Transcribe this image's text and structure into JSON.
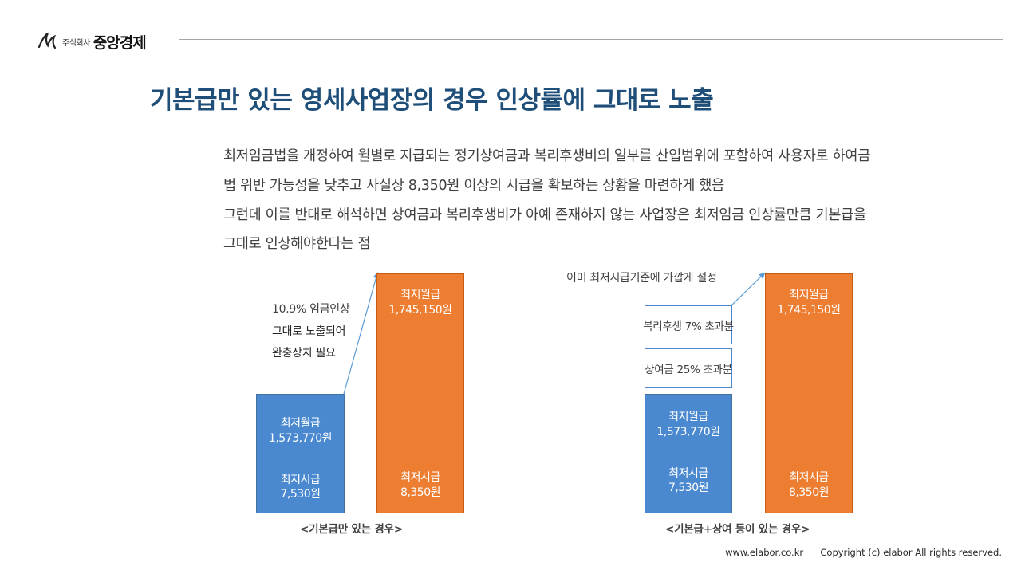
{
  "header": {
    "logo_small": "주식회사",
    "logo_name": "중앙경제"
  },
  "title": "기본급만 있는 영세사업장의 경우 인상률에 그대로 노출",
  "body": {
    "line1": "최저임금법을 개정하여 월별로 지급되는 정기상여금과 복리후생비의 일부를 산입범위에 포함하여 사용자로 하여금",
    "line2": "법 위반 가능성을 낮추고 사실상 8,350원 이상의 시급을 확보하는 상황을 마련하게 했음",
    "line3": "그런데 이를 반대로 해석하면 상여금과 복리후생비가 아예 존재하지 않는 사업장은 최저임금 인상률만큼 기본급을",
    "line4": "그대로 인상해야한다는 점"
  },
  "left_chart": {
    "note_line1": "10.9%  임금인상",
    "note_line2": "그대로 노출되어",
    "note_line3": "완충장치 필요",
    "blue_box": {
      "monthly_label": "최저월급",
      "monthly_value": "1,573,770원",
      "hourly_label": "최저시급",
      "hourly_value": "7,530원"
    },
    "orange_box": {
      "monthly_label": "최저월급",
      "monthly_value": "1,745,150원",
      "hourly_label": "최저시급",
      "hourly_value": "8,350원"
    },
    "caption": "<기본급만 있는 경우>"
  },
  "right_chart": {
    "note": "이미 최저시급기준에 가깝게 설정",
    "welfare_box": "복리후생 7% 초과분",
    "bonus_box": "상여금 25% 초과분",
    "blue_box": {
      "monthly_label": "최저월급",
      "monthly_value": "1,573,770원",
      "hourly_label": "최저시급",
      "hourly_value": "7,530원"
    },
    "orange_box": {
      "monthly_label": "최저월급",
      "monthly_value": "1,745,150원",
      "hourly_label": "최저시급",
      "hourly_value": "8,350원"
    },
    "caption": "<기본급+상여 등이 있는 경우>"
  },
  "footer": {
    "url": "www.elabor.co.kr",
    "copyright": "Copyright (c) elabor All rights reserved."
  },
  "colors": {
    "title": "#1f4e79",
    "blue": "#4a89d0",
    "orange": "#ed7d31",
    "arrow": "#5b9bd5"
  }
}
